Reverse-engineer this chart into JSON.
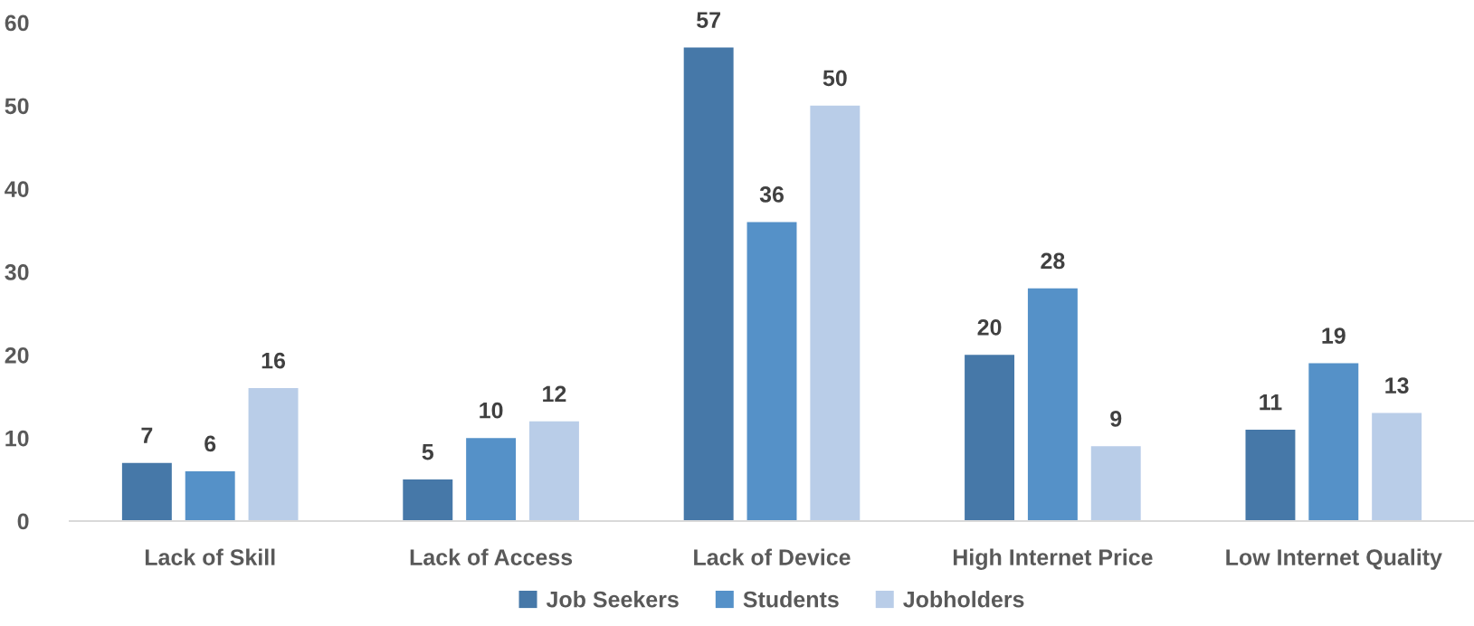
{
  "chart_data": {
    "type": "bar",
    "categories": [
      "Lack of Skill",
      "Lack of Access",
      "Lack of Device",
      "High Internet Price",
      "Low Internet Quality"
    ],
    "series": [
      {
        "name": "Job Seekers",
        "color": "#4678a8",
        "values": [
          7,
          5,
          57,
          20,
          11
        ]
      },
      {
        "name": "Students",
        "color": "#5591c8",
        "values": [
          6,
          10,
          36,
          28,
          19
        ]
      },
      {
        "name": "Jobholders",
        "color": "#b9cde8",
        "values": [
          16,
          12,
          50,
          9,
          13
        ]
      }
    ],
    "ylim": [
      0,
      60
    ],
    "yticks": [
      0,
      10,
      20,
      30,
      40,
      50,
      60
    ],
    "grid": false,
    "legend": "bottom",
    "data_labels": true
  }
}
